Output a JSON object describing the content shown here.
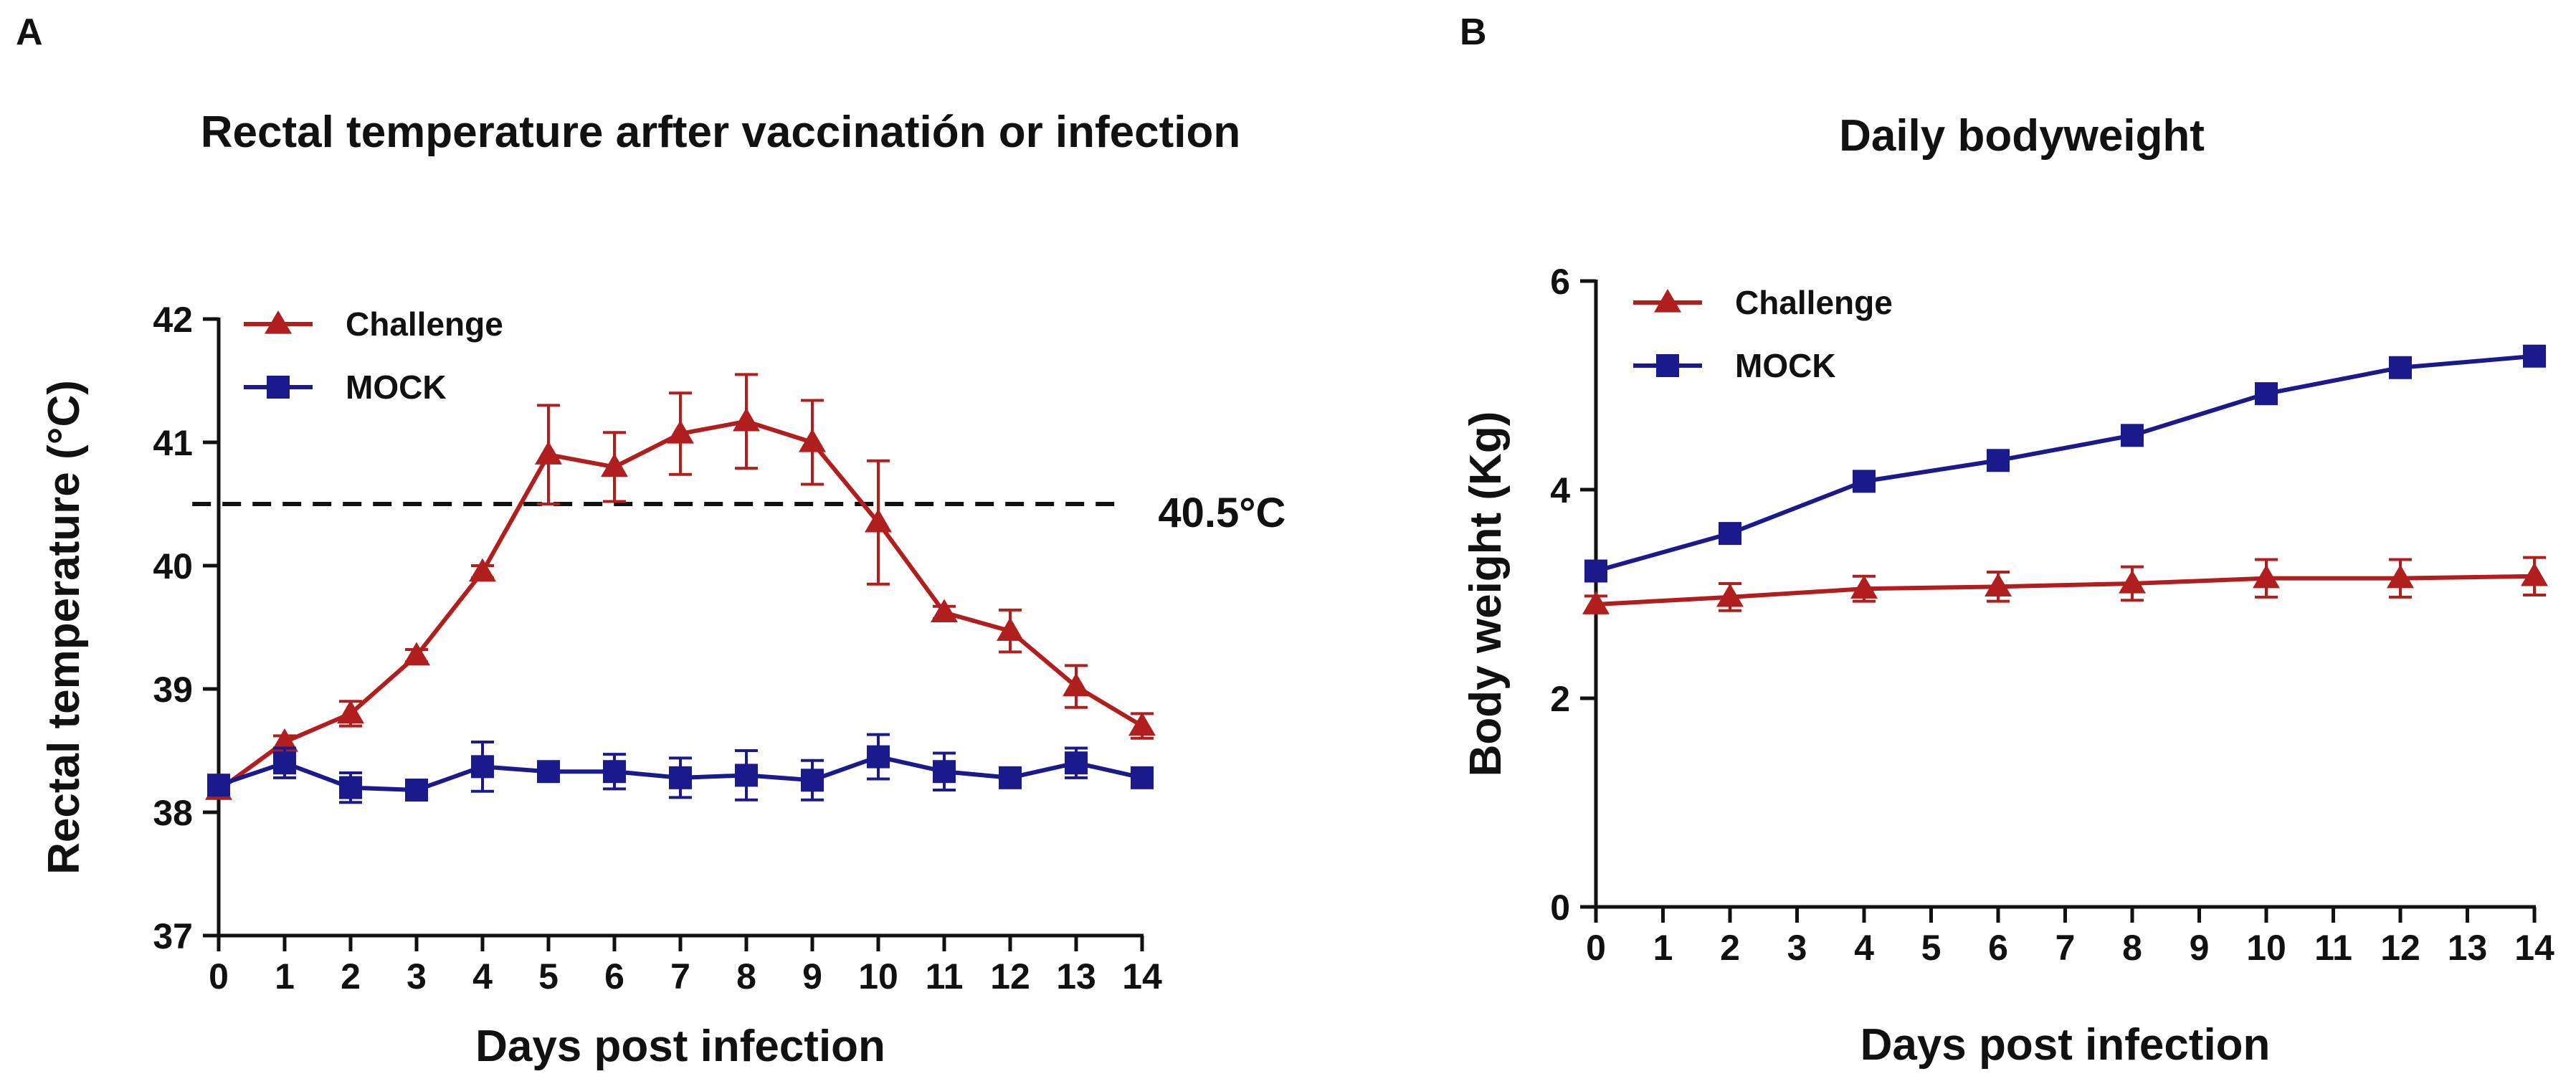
{
  "panels": [
    {
      "letter": "A",
      "chart_data": {
        "type": "line",
        "title": "Rectal temperature arfter vaccinatión or infection",
        "xlabel": "Days post infection",
        "ylabel": "Rectal temperature (°C)",
        "xlim": [
          0,
          14
        ],
        "ylim": [
          37,
          42
        ],
        "xticks": [
          0,
          1,
          2,
          3,
          4,
          5,
          6,
          7,
          8,
          9,
          10,
          11,
          12,
          13,
          14
        ],
        "yticks": [
          37,
          38,
          39,
          40,
          41,
          42
        ],
        "grid": false,
        "legend_position": "top-left",
        "reference_line": {
          "y": 40.5,
          "label": "40.5°C",
          "style": "dashed",
          "x_range": [
            -0.4,
            13.7
          ]
        },
        "series": [
          {
            "name": "Challenge",
            "marker": "triangle",
            "color": "#b01e1e",
            "x": [
              0,
              1,
              2,
              3,
              4,
              5,
              6,
              7,
              8,
              9,
              10,
              11,
              12,
              13,
              14
            ],
            "values": [
              38.18,
              38.57,
              38.8,
              39.27,
              39.95,
              40.9,
              40.8,
              41.07,
              41.17,
              41.0,
              40.35,
              39.62,
              39.47,
              39.02,
              38.7
            ],
            "errors": [
              0,
              0.05,
              0.1,
              0.05,
              0.05,
              0.4,
              0.28,
              0.33,
              0.38,
              0.34,
              0.5,
              0.05,
              0.17,
              0.17,
              0.1
            ]
          },
          {
            "name": "MOCK",
            "marker": "square",
            "color": "#1a1a8c",
            "x": [
              0,
              1,
              2,
              3,
              4,
              5,
              6,
              7,
              8,
              9,
              10,
              11,
              12,
              13,
              14
            ],
            "values": [
              38.22,
              38.4,
              38.2,
              38.18,
              38.37,
              38.33,
              38.33,
              38.28,
              38.3,
              38.26,
              38.45,
              38.33,
              38.28,
              38.4,
              38.28
            ],
            "errors": [
              0.05,
              0.12,
              0.12,
              0.05,
              0.2,
              0.05,
              0.14,
              0.16,
              0.2,
              0.16,
              0.18,
              0.15,
              0.06,
              0.12,
              0.05
            ]
          }
        ]
      }
    },
    {
      "letter": "B",
      "chart_data": {
        "type": "line",
        "title": "Daily bodyweight",
        "xlabel": "Days post infection",
        "ylabel": "Body weight (Kg)",
        "xlim": [
          0,
          14
        ],
        "ylim": [
          0,
          6
        ],
        "xticks": [
          0,
          1,
          2,
          3,
          4,
          5,
          6,
          7,
          8,
          9,
          10,
          11,
          12,
          13,
          14
        ],
        "yticks": [
          0,
          2,
          4,
          6
        ],
        "grid": false,
        "legend_position": "top-left",
        "series": [
          {
            "name": "Challenge",
            "marker": "triangle",
            "color": "#b01e1e",
            "x": [
              0,
              2,
              4,
              6,
              8,
              10,
              12,
              14
            ],
            "values": [
              2.9,
              2.97,
              3.05,
              3.07,
              3.1,
              3.15,
              3.15,
              3.17
            ],
            "errors": [
              0.08,
              0.13,
              0.12,
              0.14,
              0.16,
              0.18,
              0.18,
              0.18
            ]
          },
          {
            "name": "MOCK",
            "marker": "square",
            "color": "#1a1a8c",
            "x": [
              0,
              2,
              4,
              6,
              8,
              10,
              12,
              14
            ],
            "values": [
              3.22,
              3.58,
              4.08,
              4.28,
              4.52,
              4.92,
              5.17,
              5.28
            ],
            "errors": [
              0,
              0,
              0,
              0,
              0,
              0,
              0,
              0
            ]
          }
        ]
      }
    }
  ]
}
